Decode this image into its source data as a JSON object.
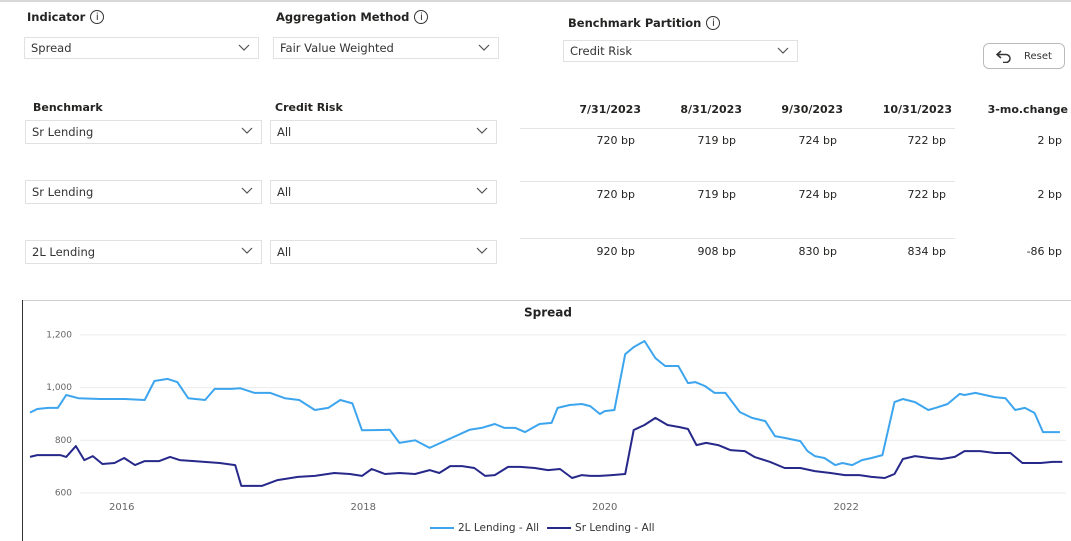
{
  "controls": {
    "indicator": {
      "label": "Indicator",
      "value": "Spread"
    },
    "aggregation": {
      "label": "Aggregation Method",
      "value": "Fair Value Weighted"
    },
    "partition": {
      "label": "Benchmark Partition",
      "value": "Credit Risk"
    },
    "reset": "Reset"
  },
  "table": {
    "headers": [
      "Benchmark",
      "Credit Risk",
      "7/31/2023",
      "8/31/2023",
      "9/30/2023",
      "10/31/2023",
      "3-mo.change"
    ],
    "rows": [
      [
        "Sr Lending",
        "All",
        "720 bp",
        "719 bp",
        "724 bp",
        "722 bp",
        "2 bp"
      ],
      [
        "Sr Lending",
        "All",
        "720 bp",
        "719 bp",
        "724 bp",
        "722 bp",
        "2 bp"
      ],
      [
        "2L Lending",
        "All",
        "920 bp",
        "908 bp",
        "830 bp",
        "834 bp",
        "-86 bp"
      ]
    ]
  },
  "chart_data": {
    "type": "line",
    "title": "Spread",
    "xlim": [
      2015.24,
      2023.81
    ],
    "xticks": [
      2016,
      2018,
      2020,
      2022
    ],
    "ylim": [
      570,
      1240
    ],
    "yticks": [
      {
        "value": 600,
        "label": "600"
      },
      {
        "value": 800,
        "label": "800"
      },
      {
        "value": 1000,
        "label": "1,000"
      },
      {
        "value": 1200,
        "label": "1,200"
      }
    ],
    "grid": true,
    "legend": "bottom",
    "series": [
      {
        "name": "2L Lending - All",
        "color": "#3da5ee",
        "x": [
          2015.24,
          2015.3,
          2015.39,
          2015.47,
          2015.54,
          2015.64,
          2015.82,
          2016.02,
          2016.19,
          2016.27,
          2016.38,
          2016.46,
          2016.55,
          2016.69,
          2016.77,
          2016.91,
          2016.98,
          2017.1,
          2017.23,
          2017.35,
          2017.47,
          2017.6,
          2017.71,
          2017.81,
          2017.91,
          2017.99,
          2018.22,
          2018.3,
          2018.43,
          2018.55,
          2018.88,
          2018.98,
          2019.09,
          2019.17,
          2019.26,
          2019.34,
          2019.46,
          2019.56,
          2019.61,
          2019.71,
          2019.81,
          2019.88,
          2019.96,
          2020.0,
          2020.08,
          2020.17,
          2020.24,
          2020.33,
          2020.42,
          2020.5,
          2020.61,
          2020.69,
          2020.75,
          2020.83,
          2020.91,
          2021.0,
          2021.12,
          2021.22,
          2021.33,
          2021.41,
          2021.49,
          2021.62,
          2021.68,
          2021.74,
          2021.82,
          2021.91,
          2021.97,
          2022.05,
          2022.13,
          2022.21,
          2022.3,
          2022.4,
          2022.47,
          2022.57,
          2022.68,
          2022.74,
          2022.84,
          2022.94,
          2022.98,
          2023.07,
          2023.15,
          2023.23,
          2023.32,
          2023.4,
          2023.48,
          2023.56,
          2023.63,
          2023.71,
          2023.77
        ],
        "values": [
          905,
          919,
          923,
          923,
          972,
          960,
          957,
          957,
          953,
          1025,
          1033,
          1021,
          960,
          953,
          995,
          995,
          998,
          980,
          980,
          960,
          953,
          915,
          923,
          953,
          940,
          838,
          840,
          790,
          800,
          771,
          840,
          847,
          862,
          847,
          847,
          831,
          862,
          866,
          923,
          934,
          938,
          930,
          900,
          911,
          915,
          1127,
          1154,
          1177,
          1112,
          1082,
          1082,
          1017,
          1021,
          1006,
          980,
          980,
          907,
          885,
          873,
          816,
          809,
          797,
          759,
          740,
          733,
          706,
          714,
          706,
          725,
          733,
          744,
          945,
          957,
          945,
          915,
          923,
          938,
          976,
          972,
          980,
          972,
          964,
          960,
          915,
          923,
          904,
          831,
          831,
          831
        ]
      },
      {
        "name": "Sr Lending - All",
        "color": "#26288a",
        "x": [
          2015.24,
          2015.3,
          2015.49,
          2015.54,
          2015.62,
          2015.69,
          2015.76,
          2015.84,
          2015.94,
          2016.02,
          2016.11,
          2016.19,
          2016.31,
          2016.4,
          2016.48,
          2016.6,
          2016.81,
          2016.94,
          2016.99,
          2017.16,
          2017.29,
          2017.46,
          2017.6,
          2017.76,
          2017.89,
          2017.99,
          2018.07,
          2018.18,
          2018.3,
          2018.43,
          2018.55,
          2018.63,
          2018.72,
          2018.82,
          2018.92,
          2019.01,
          2019.09,
          2019.2,
          2019.3,
          2019.42,
          2019.53,
          2019.63,
          2019.73,
          2019.81,
          2019.88,
          2019.96,
          2020.06,
          2020.17,
          2020.24,
          2020.33,
          2020.42,
          2020.52,
          2020.62,
          2020.69,
          2020.76,
          2020.84,
          2020.94,
          2021.04,
          2021.16,
          2021.24,
          2021.37,
          2021.49,
          2021.62,
          2021.74,
          2021.87,
          2021.99,
          2022.11,
          2022.21,
          2022.32,
          2022.4,
          2022.47,
          2022.57,
          2022.69,
          2022.79,
          2022.9,
          2022.98,
          2023.11,
          2023.23,
          2023.36,
          2023.46,
          2023.61,
          2023.71,
          2023.79
        ],
        "values": [
          737,
          744,
          744,
          737,
          778,
          725,
          740,
          710,
          714,
          733,
          706,
          721,
          721,
          737,
          725,
          721,
          714,
          706,
          627,
          627,
          649,
          661,
          665,
          676,
          672,
          665,
          691,
          672,
          676,
          672,
          687,
          676,
          702,
          702,
          695,
          665,
          668,
          699,
          699,
          695,
          687,
          691,
          657,
          668,
          665,
          665,
          668,
          672,
          839,
          858,
          885,
          858,
          850,
          843,
          782,
          790,
          782,
          763,
          759,
          737,
          718,
          695,
          695,
          683,
          676,
          668,
          668,
          661,
          657,
          672,
          729,
          740,
          733,
          729,
          737,
          759,
          759,
          752,
          752,
          714,
          714,
          718,
          718
        ]
      }
    ]
  }
}
